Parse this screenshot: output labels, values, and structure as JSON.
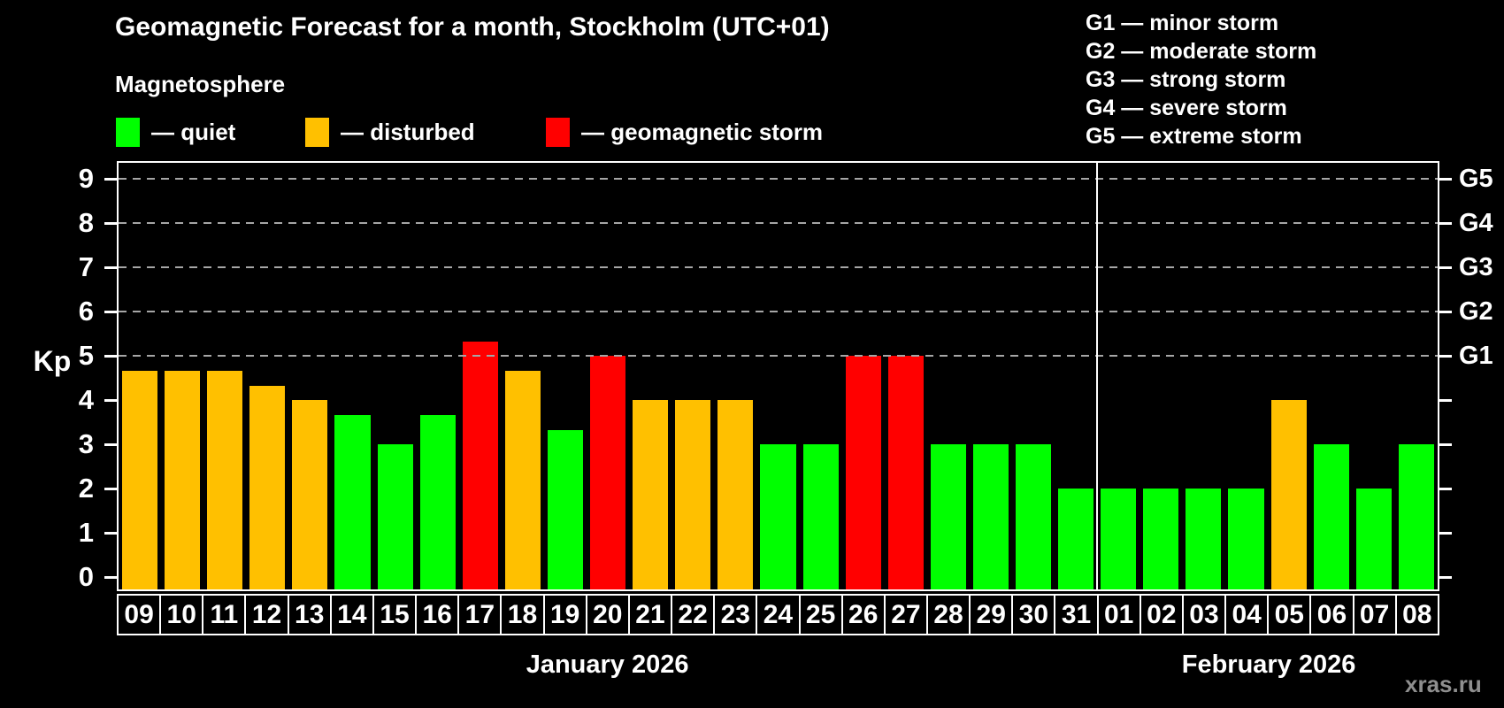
{
  "header": {
    "title": "Geomagnetic Forecast for a month, Stockholm (UTC+01)",
    "subtitle": "Magnetosphere",
    "legend": [
      {
        "key": "quiet",
        "label": "— quiet"
      },
      {
        "key": "disturbed",
        "label": "— disturbed"
      },
      {
        "key": "storm",
        "label": "— geomagnetic storm"
      }
    ]
  },
  "storm_legend": {
    "items": [
      "G1 — minor storm",
      "G2 — moderate storm",
      "G3 — strong storm",
      "G4 — severe storm",
      "G5 — extreme storm"
    ]
  },
  "watermark": "xras.ru",
  "colors": {
    "quiet": "#00ff00",
    "disturbed": "#ffc000",
    "storm": "#ff0000",
    "grid": "#a6a6a6",
    "axis": "#ffffff"
  },
  "chart_data": {
    "type": "bar",
    "title": "Geomagnetic Forecast for a month, Stockholm (UTC+01)",
    "ylabel": "Kp",
    "ylim": [
      0,
      9
    ],
    "yticks": [
      0,
      1,
      2,
      3,
      4,
      5,
      6,
      7,
      8,
      9
    ],
    "gridlines_at": [
      5,
      6,
      7,
      8,
      9
    ],
    "grid": true,
    "right_axis": [
      {
        "label": "G1",
        "value": 5
      },
      {
        "label": "G2",
        "value": 6
      },
      {
        "label": "G3",
        "value": 7
      },
      {
        "label": "G4",
        "value": 8
      },
      {
        "label": "G5",
        "value": 9
      }
    ],
    "months": [
      {
        "label": "January 2026",
        "days": 23
      },
      {
        "label": "February 2026",
        "days": 8
      }
    ],
    "categories": [
      "09",
      "10",
      "11",
      "12",
      "13",
      "14",
      "15",
      "16",
      "17",
      "18",
      "19",
      "20",
      "21",
      "22",
      "23",
      "24",
      "25",
      "26",
      "27",
      "28",
      "29",
      "30",
      "31",
      "01",
      "02",
      "03",
      "04",
      "05",
      "06",
      "07",
      "08"
    ],
    "values": [
      4.67,
      4.67,
      4.67,
      4.33,
      4,
      3.67,
      3,
      3.67,
      5.33,
      4.67,
      3.33,
      5,
      4,
      4,
      4,
      3,
      3,
      5,
      5,
      3,
      3,
      3,
      2,
      2,
      2,
      2,
      2,
      4,
      3,
      2,
      3
    ],
    "statuses": [
      "disturbed",
      "disturbed",
      "disturbed",
      "disturbed",
      "disturbed",
      "quiet",
      "quiet",
      "quiet",
      "storm",
      "disturbed",
      "quiet",
      "storm",
      "disturbed",
      "disturbed",
      "disturbed",
      "quiet",
      "quiet",
      "storm",
      "storm",
      "quiet",
      "quiet",
      "quiet",
      "quiet",
      "quiet",
      "quiet",
      "quiet",
      "quiet",
      "disturbed",
      "quiet",
      "quiet",
      "quiet"
    ]
  }
}
